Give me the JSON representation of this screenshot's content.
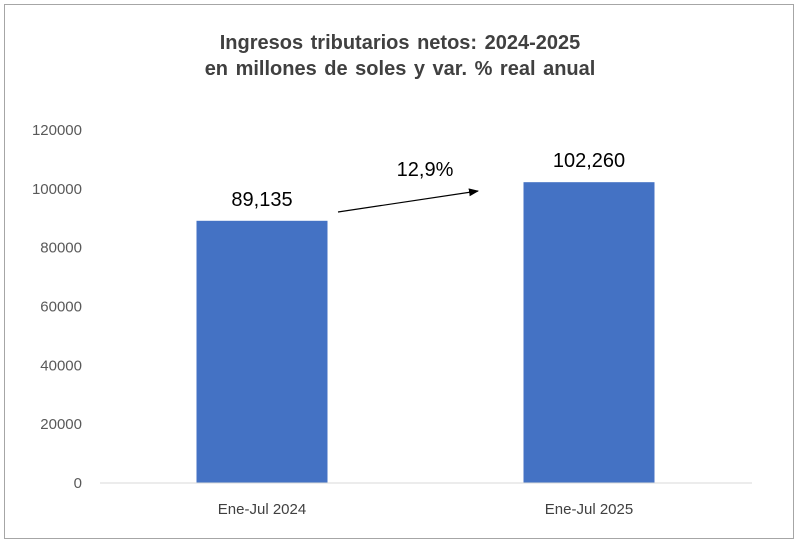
{
  "chart_data": {
    "type": "bar",
    "title_line1": "Ingresos tributarios netos: 2024-2025",
    "title_line2": "en millones de soles y var. % real anual",
    "categories": [
      "Ene-Jul 2024",
      "Ene-Jul 2025"
    ],
    "values": [
      89135,
      102260
    ],
    "data_labels": [
      "89,135",
      "102,260"
    ],
    "yticks": [
      "0",
      "20000",
      "40000",
      "60000",
      "80000",
      "100000",
      "120000"
    ],
    "ylim": [
      0,
      120000
    ],
    "grid": false,
    "bar_color": "#4472C4",
    "annotation": {
      "text": "12,9%",
      "type": "arrow",
      "from_category": "Ene-Jul 2024",
      "to_category": "Ene-Jul 2025"
    }
  }
}
